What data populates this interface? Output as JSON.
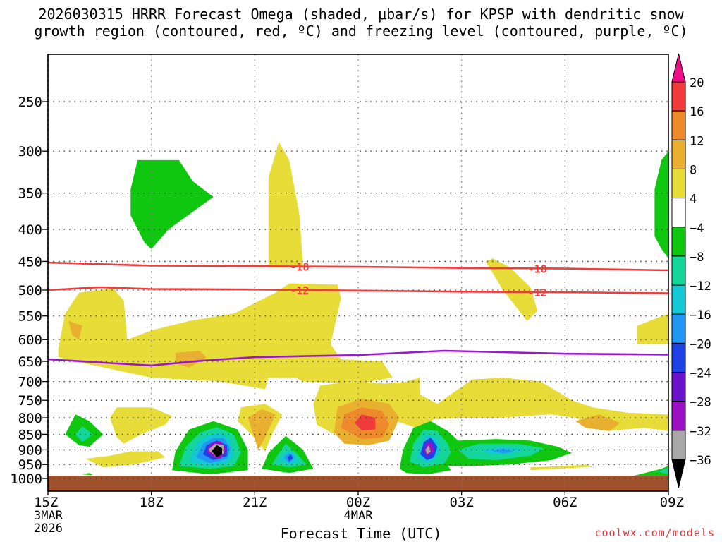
{
  "title": {
    "line1": "2026030315 HRRR Forecast Omega (shaded, μbar/s) for KPSP with dendritic snow",
    "line2": "growth region (contoured, red, ºC) and freezing level (contoured, purple, ºC)"
  },
  "watermark": "coolwx.com/models",
  "chart_data": {
    "type": "contour",
    "title": "2026030315 HRRR Forecast Omega (shaded, μbar/s) for KPSP with dendritic snow growth region (contoured, red, ºC) and freezing level (contoured, purple, ºC)",
    "xlabel": "Forecast Time (UTC)",
    "ylabel": "",
    "x_ticks": [
      {
        "hour": 0,
        "label": "15Z",
        "sub": [
          "3MAR",
          "2026"
        ]
      },
      {
        "hour": 3,
        "label": "18Z",
        "sub": []
      },
      {
        "hour": 6,
        "label": "21Z",
        "sub": []
      },
      {
        "hour": 9,
        "label": "00Z",
        "sub": [
          "4MAR"
        ]
      },
      {
        "hour": 12,
        "label": "03Z",
        "sub": []
      },
      {
        "hour": 15,
        "label": "06Z",
        "sub": []
      },
      {
        "hour": 18,
        "label": "09Z",
        "sub": []
      }
    ],
    "xlim": [
      0,
      18
    ],
    "y_ticks": [
      250,
      300,
      350,
      400,
      450,
      500,
      550,
      600,
      650,
      700,
      750,
      800,
      850,
      900,
      950,
      1000
    ],
    "ylim": [
      1025,
      200
    ],
    "y_scale": "log-pressure",
    "grid": true,
    "terrain_level": 990,
    "colorbar": {
      "levels": [
        "20",
        "16",
        "12",
        "8",
        "4",
        "−4",
        "−8",
        "−12",
        "−16",
        "−20",
        "−24",
        "−28",
        "−32",
        "−36"
      ],
      "colors": [
        "#ee0f87",
        "#f13a3a",
        "#ef8a2c",
        "#e8b02e",
        "#e8dc38",
        "#ffffff",
        "#0fc70f",
        "#14d59a",
        "#13c8d2",
        "#2196f2",
        "#1f42e5",
        "#6a12c8",
        "#9b10c3",
        "#a8a8a8",
        "#000000"
      ]
    },
    "series": [
      {
        "name": "dendritic snow growth region (ºC)",
        "color": "#f23c3c",
        "contours": [
          {
            "label": "-18",
            "points": [
              [
                0,
                452
              ],
              [
                3,
                457
              ],
              [
                6,
                458
              ],
              [
                9,
                459
              ],
              [
                12,
                461
              ],
              [
                15,
                462
              ],
              [
                18,
                465
              ]
            ]
          },
          {
            "label": "-12",
            "points": [
              [
                0,
                500
              ],
              [
                1.5,
                495
              ],
              [
                3,
                498
              ],
              [
                6,
                499
              ],
              [
                9,
                501
              ],
              [
                12,
                503
              ],
              [
                15,
                504
              ],
              [
                18,
                506
              ]
            ]
          }
        ]
      },
      {
        "name": "freezing level (ºC)",
        "color": "#9a18d0",
        "contours": [
          {
            "label": "",
            "points": [
              [
                0,
                645
              ],
              [
                2,
                655
              ],
              [
                3,
                660
              ],
              [
                4.5,
                648
              ],
              [
                6,
                640
              ],
              [
                9,
                635
              ],
              [
                11.5,
                625
              ],
              [
                15,
                632
              ],
              [
                18,
                634
              ]
            ]
          }
        ]
      }
    ],
    "shaded_regions": [
      {
        "omega": "-4 to -8",
        "hours": [
          2.4,
          4.8
        ],
        "p_range": [
          310,
          430
        ]
      },
      {
        "omega": "4 to 8",
        "hours": [
          6.4,
          7.4
        ],
        "p_range": [
          290,
          460
        ]
      },
      {
        "omega": "4 to 8",
        "hours": [
          0.3,
          8.5
        ],
        "p_range": [
          490,
          720
        ]
      },
      {
        "omega": "4 to 8",
        "hours": [
          12.4,
          13.8
        ],
        "p_range": [
          450,
          580
        ]
      },
      {
        "omega": "4 to 8",
        "hours": [
          7.5,
          18
        ],
        "p_range": [
          680,
          830
        ]
      },
      {
        "omega": "-36 to -8",
        "hours": [
          3.6,
          5.9
        ],
        "p_range": [
          820,
          970
        ]
      },
      {
        "omega": "-24 to -8",
        "hours": [
          6.2,
          7.7
        ],
        "p_range": [
          840,
          970
        ]
      },
      {
        "omega": "12 to 16",
        "hours": [
          8.2,
          9.9
        ],
        "p_range": [
          750,
          900
        ]
      },
      {
        "omega": "-32 to -8",
        "hours": [
          10.1,
          11.7
        ],
        "p_range": [
          800,
          970
        ]
      },
      {
        "omega": "-16 to -8",
        "hours": [
          11.9,
          15.4
        ],
        "p_range": [
          860,
          960
        ]
      },
      {
        "omega": "-8 to -4",
        "hours": [
          17.5,
          18
        ],
        "p_range": [
          310,
          430
        ]
      }
    ]
  }
}
